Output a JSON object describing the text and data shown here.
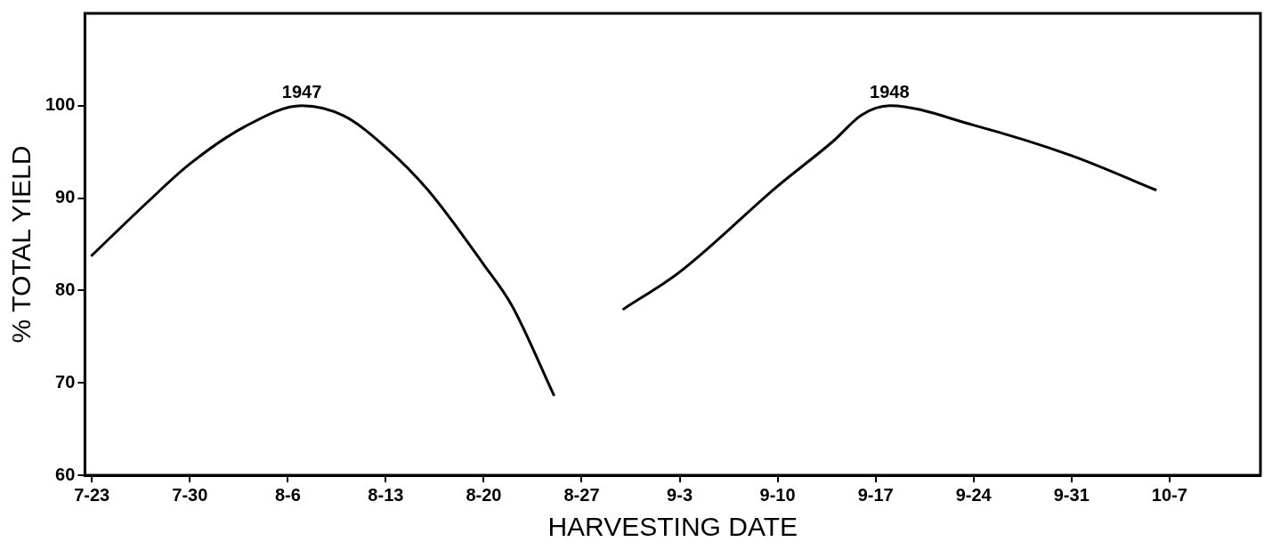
{
  "chart_data": {
    "type": "line",
    "xlabel": "HARVESTING DATE",
    "ylabel": "% TOTAL YIELD",
    "categories": [
      "7-23",
      null,
      null,
      null,
      null,
      null,
      null,
      "7-30",
      null,
      null,
      null,
      null,
      null,
      null,
      "8-6",
      null,
      null,
      null,
      null,
      null,
      null,
      "8-13",
      null,
      null,
      null,
      null,
      null,
      null,
      "8-20",
      null,
      null,
      null,
      null,
      null,
      null,
      "8-27",
      null,
      null,
      null,
      null,
      null,
      null,
      "9-3",
      null,
      null,
      null,
      null,
      null,
      null,
      "9-10",
      null,
      null,
      null,
      null,
      null,
      null,
      "9-17",
      null,
      null,
      null,
      null,
      null,
      null,
      "9-24",
      null,
      null,
      null,
      null,
      null,
      null,
      "9-31",
      null,
      null,
      null,
      null,
      null,
      null,
      "10-7",
      null,
      null,
      null,
      null,
      null,
      null
    ],
    "ylim": [
      60,
      110
    ],
    "yticks": [
      60,
      70,
      80,
      90,
      100
    ],
    "grid": false,
    "legend": false,
    "marker": "none",
    "line_style": "solid",
    "series": [
      {
        "color": "#000000",
        "values": [
          83.8,
          null,
          null,
          null,
          89.6,
          null,
          null,
          93.7,
          null,
          null,
          null,
          97.8,
          null,
          null,
          null,
          100,
          null,
          null,
          98.9,
          null,
          null,
          95.5,
          null,
          null,
          90.9,
          null,
          null,
          null,
          82.8,
          null,
          78.4,
          null,
          null,
          68.7,
          null,
          null,
          null,
          null,
          null,
          null,
          null,
          null,
          null,
          null,
          null,
          null,
          null,
          null,
          null,
          null,
          null,
          null,
          null,
          null,
          null,
          null,
          null,
          null,
          null,
          null,
          null,
          null,
          null,
          null,
          null,
          null,
          null,
          null,
          null,
          null,
          null,
          null,
          null,
          null,
          null,
          null,
          null,
          null,
          null,
          null,
          null,
          null,
          null,
          null
        ]
      },
      {
        "color": "#000000",
        "values": [
          null,
          null,
          null,
          null,
          null,
          null,
          null,
          null,
          null,
          null,
          null,
          null,
          null,
          null,
          null,
          null,
          null,
          null,
          null,
          null,
          null,
          null,
          null,
          null,
          null,
          null,
          null,
          null,
          null,
          null,
          null,
          null,
          null,
          null,
          null,
          null,
          null,
          null,
          78,
          null,
          null,
          null,
          82,
          null,
          null,
          null,
          null,
          null,
          null,
          91.3,
          null,
          null,
          null,
          96.2,
          null,
          99,
          null,
          100,
          null,
          null,
          null,
          null,
          null,
          97.9,
          null,
          null,
          null,
          null,
          null,
          null,
          94.6,
          null,
          null,
          null,
          null,
          null,
          90.9,
          null,
          null,
          null,
          null,
          null,
          null,
          null
        ]
      }
    ],
    "annotations": [
      "1947",
      "1948"
    ]
  }
}
